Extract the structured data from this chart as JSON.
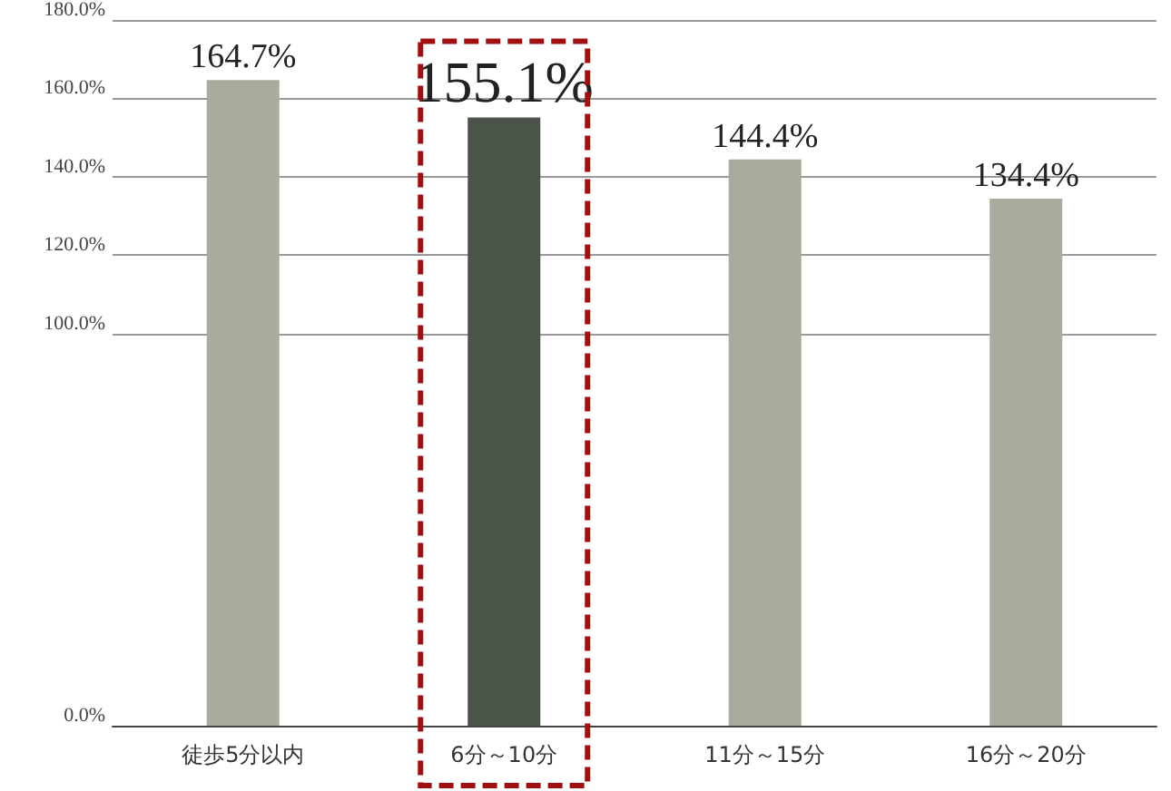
{
  "chart_data": {
    "type": "bar",
    "categories": [
      "徒歩5分以内",
      "6分～10分",
      "11分～15分",
      "16分～20分"
    ],
    "values": [
      164.7,
      155.1,
      144.4,
      134.4
    ],
    "colors": [
      "#a9ab9d",
      "#4a5449",
      "#a9ab9d",
      "#a9ab9d"
    ],
    "value_labels": [
      "164.7%",
      "155.1%",
      "144.4%",
      "134.4%"
    ],
    "ylim": [
      0,
      180
    ],
    "yticks": [
      {
        "value": 0,
        "label": "0.0%"
      },
      {
        "value": 100,
        "label": "100.0%"
      },
      {
        "value": 120,
        "label": "120.0%"
      },
      {
        "value": 140,
        "label": "140.0%"
      },
      {
        "value": 160,
        "label": "160.0%"
      },
      {
        "value": 180,
        "label": "180.0%"
      }
    ],
    "grid": "y"
  }
}
